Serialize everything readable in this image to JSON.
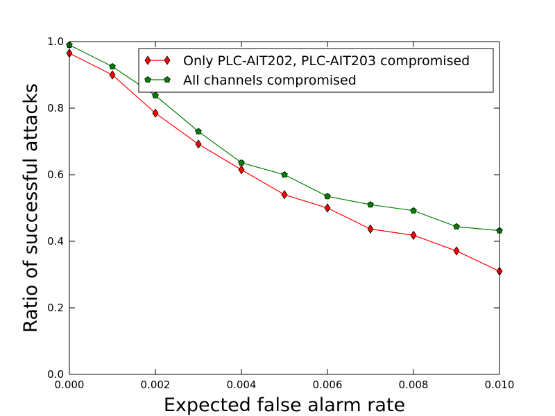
{
  "chart_data": {
    "type": "line",
    "title": "",
    "xlabel": "Expected false alarm rate",
    "ylabel": "Ratio of successful attacks",
    "xlim": [
      0.0,
      0.01
    ],
    "ylim": [
      0.0,
      1.0
    ],
    "x_ticks": [
      "0.000",
      "0.002",
      "0.004",
      "0.006",
      "0.008",
      "0.010"
    ],
    "y_ticks": [
      "0.0",
      "0.2",
      "0.4",
      "0.6",
      "0.8",
      "1.0"
    ],
    "grid": false,
    "legend_position": "top-right",
    "x": [
      0.0,
      0.001,
      0.002,
      0.003,
      0.004,
      0.005,
      0.006,
      0.007,
      0.008,
      0.009,
      0.01
    ],
    "series": [
      {
        "name": "Only PLC-AIT202, PLC-AIT203 compromised",
        "color": "#ff0000",
        "marker": "thin-diamond",
        "values": [
          0.965,
          0.9,
          0.785,
          0.692,
          0.615,
          0.54,
          0.5,
          0.437,
          0.418,
          0.371,
          0.31
        ]
      },
      {
        "name": "All channels compromised",
        "color": "#008000",
        "marker": "pentagon",
        "values": [
          0.99,
          0.925,
          0.838,
          0.73,
          0.636,
          0.6,
          0.535,
          0.51,
          0.492,
          0.444,
          0.432
        ]
      }
    ]
  }
}
